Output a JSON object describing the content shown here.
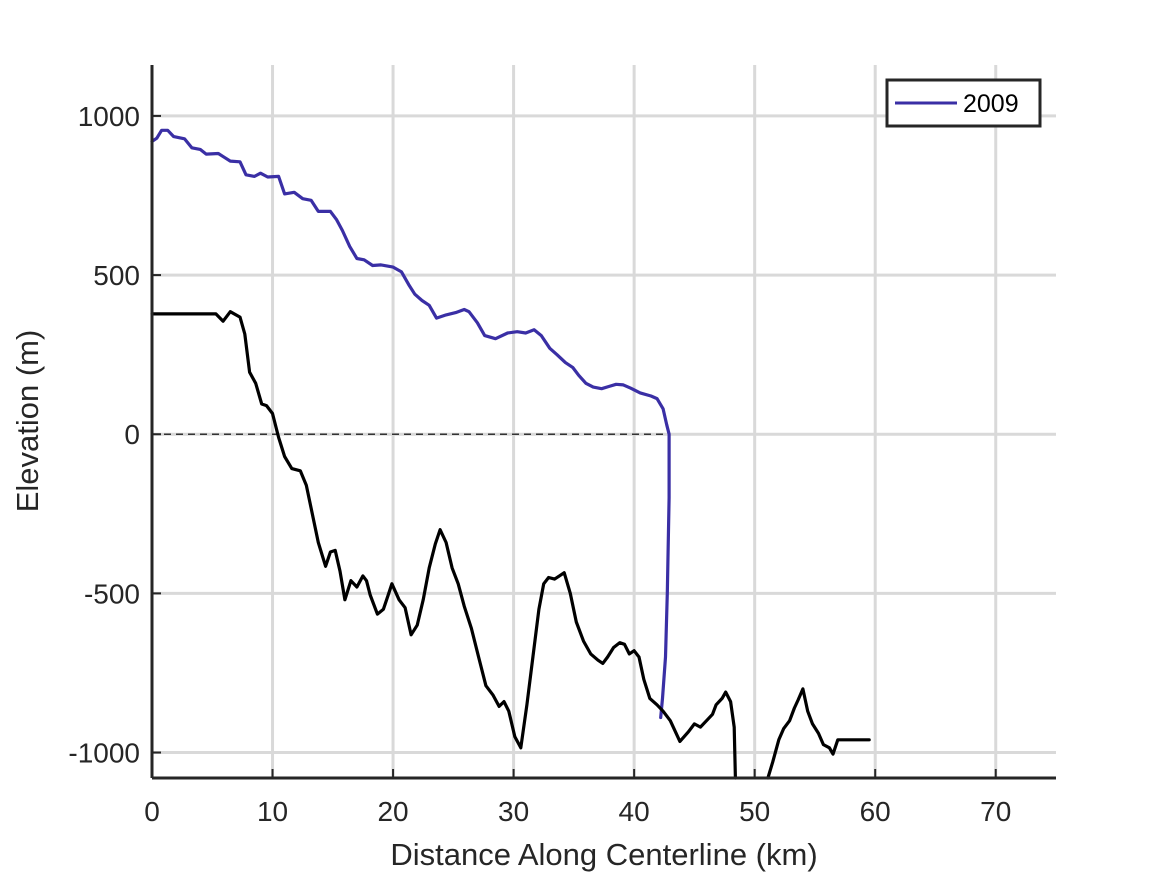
{
  "chart_data": {
    "type": "line",
    "title": "",
    "xlabel": "Distance Along Centerline (km)",
    "ylabel": "Elevation (m)",
    "xlim": [
      0,
      75
    ],
    "ylim": [
      -1080,
      1160
    ],
    "xticks": [
      0,
      10,
      20,
      30,
      40,
      50,
      60,
      70
    ],
    "yticks": [
      -1000,
      -500,
      0,
      500,
      1000
    ],
    "xtick_labels": [
      "0",
      "10",
      "20",
      "30",
      "40",
      "50",
      "60",
      "70"
    ],
    "ytick_labels": [
      "-1000",
      "-500",
      "0",
      "500",
      "1000"
    ],
    "grid": true,
    "legend": {
      "position": "top-right",
      "entries": [
        "2009"
      ]
    },
    "reference_line": {
      "y": 0,
      "x_range": [
        0,
        43
      ],
      "style": "dashed"
    },
    "series": [
      {
        "name": "2009",
        "color": "#3a2fa5",
        "points": [
          [
            0,
            920
          ],
          [
            0.4,
            930
          ],
          [
            0.8,
            955
          ],
          [
            1.3,
            955
          ],
          [
            1.8,
            935
          ],
          [
            2.7,
            928
          ],
          [
            3.3,
            900
          ],
          [
            4.0,
            895
          ],
          [
            4.5,
            880
          ],
          [
            5.5,
            882
          ],
          [
            6.0,
            870
          ],
          [
            6.5,
            858
          ],
          [
            7.3,
            856
          ],
          [
            7.8,
            815
          ],
          [
            8.5,
            810
          ],
          [
            9.0,
            820
          ],
          [
            9.6,
            808
          ],
          [
            10.5,
            810
          ],
          [
            11.0,
            755
          ],
          [
            11.8,
            760
          ],
          [
            12.5,
            740
          ],
          [
            13.2,
            735
          ],
          [
            13.8,
            700
          ],
          [
            14.8,
            700
          ],
          [
            15.3,
            675
          ],
          [
            15.8,
            640
          ],
          [
            16.4,
            590
          ],
          [
            17.0,
            552
          ],
          [
            17.6,
            548
          ],
          [
            18.3,
            530
          ],
          [
            19.0,
            532
          ],
          [
            20.0,
            525
          ],
          [
            20.7,
            510
          ],
          [
            21.3,
            470
          ],
          [
            21.8,
            440
          ],
          [
            22.4,
            420
          ],
          [
            23.0,
            405
          ],
          [
            23.6,
            365
          ],
          [
            24.4,
            375
          ],
          [
            25.2,
            382
          ],
          [
            25.9,
            392
          ],
          [
            26.3,
            385
          ],
          [
            27.0,
            350
          ],
          [
            27.6,
            310
          ],
          [
            28.5,
            300
          ],
          [
            29.5,
            318
          ],
          [
            30.3,
            322
          ],
          [
            31.0,
            318
          ],
          [
            31.7,
            328
          ],
          [
            32.3,
            310
          ],
          [
            33.0,
            270
          ],
          [
            33.6,
            250
          ],
          [
            34.3,
            225
          ],
          [
            34.9,
            210
          ],
          [
            35.4,
            185
          ],
          [
            36.0,
            160
          ],
          [
            36.6,
            148
          ],
          [
            37.3,
            143
          ],
          [
            37.9,
            150
          ],
          [
            38.5,
            157
          ],
          [
            39.1,
            155
          ],
          [
            39.7,
            145
          ],
          [
            40.5,
            130
          ],
          [
            41.4,
            120
          ],
          [
            41.9,
            112
          ],
          [
            42.4,
            80
          ],
          [
            42.7,
            30
          ],
          [
            42.9,
            0
          ],
          [
            42.9,
            -200
          ],
          [
            42.75,
            -500
          ],
          [
            42.6,
            -700
          ],
          [
            42.35,
            -830
          ],
          [
            42.2,
            -890
          ]
        ]
      },
      {
        "name": "",
        "color": "#000000",
        "segments": [
          [
            [
              0,
              378
            ],
            [
              5.3,
              378
            ],
            [
              5.9,
              355
            ],
            [
              6.5,
              385
            ],
            [
              7.3,
              368
            ],
            [
              7.7,
              315
            ],
            [
              8.1,
              195
            ],
            [
              8.6,
              160
            ],
            [
              9.1,
              95
            ],
            [
              9.5,
              90
            ],
            [
              10.0,
              65
            ],
            [
              10.5,
              -10
            ],
            [
              11.0,
              -70
            ],
            [
              11.6,
              -108
            ],
            [
              12.3,
              -115
            ],
            [
              12.8,
              -160
            ],
            [
              13.3,
              -250
            ],
            [
              13.8,
              -340
            ],
            [
              14.4,
              -415
            ],
            [
              14.8,
              -370
            ],
            [
              15.2,
              -365
            ],
            [
              15.6,
              -430
            ],
            [
              16.0,
              -520
            ],
            [
              16.5,
              -460
            ],
            [
              17.0,
              -480
            ],
            [
              17.5,
              -445
            ],
            [
              17.8,
              -460
            ],
            [
              18.1,
              -505
            ],
            [
              18.7,
              -565
            ],
            [
              19.2,
              -550
            ],
            [
              19.6,
              -505
            ],
            [
              19.9,
              -470
            ],
            [
              20.5,
              -520
            ],
            [
              21.0,
              -545
            ],
            [
              21.5,
              -630
            ],
            [
              22.0,
              -600
            ],
            [
              22.5,
              -520
            ],
            [
              23.0,
              -420
            ],
            [
              23.5,
              -345
            ],
            [
              23.9,
              -300
            ],
            [
              24.4,
              -340
            ],
            [
              24.9,
              -420
            ],
            [
              25.4,
              -470
            ],
            [
              25.9,
              -540
            ],
            [
              26.5,
              -610
            ],
            [
              27.1,
              -700
            ],
            [
              27.7,
              -790
            ],
            [
              28.3,
              -820
            ],
            [
              28.8,
              -855
            ],
            [
              29.2,
              -840
            ],
            [
              29.6,
              -870
            ],
            [
              30.1,
              -950
            ],
            [
              30.6,
              -985
            ],
            [
              31.1,
              -850
            ],
            [
              31.6,
              -700
            ],
            [
              32.1,
              -550
            ],
            [
              32.5,
              -470
            ],
            [
              32.9,
              -450
            ],
            [
              33.4,
              -455
            ],
            [
              33.8,
              -445
            ],
            [
              34.2,
              -435
            ],
            [
              34.7,
              -500
            ],
            [
              35.2,
              -590
            ],
            [
              35.8,
              -650
            ],
            [
              36.4,
              -690
            ],
            [
              37.0,
              -710
            ],
            [
              37.4,
              -720
            ],
            [
              37.8,
              -700
            ],
            [
              38.3,
              -670
            ],
            [
              38.8,
              -655
            ],
            [
              39.2,
              -660
            ],
            [
              39.6,
              -690
            ],
            [
              40.0,
              -680
            ],
            [
              40.4,
              -700
            ],
            [
              40.8,
              -770
            ],
            [
              41.3,
              -830
            ],
            [
              41.9,
              -850
            ],
            [
              42.4,
              -870
            ],
            [
              43.0,
              -900
            ],
            [
              43.8,
              -965
            ],
            [
              44.5,
              -935
            ],
            [
              45.0,
              -910
            ],
            [
              45.5,
              -920
            ],
            [
              46.0,
              -900
            ],
            [
              46.5,
              -880
            ],
            [
              46.8,
              -850
            ],
            [
              47.3,
              -830
            ],
            [
              47.6,
              -810
            ],
            [
              48.0,
              -840
            ],
            [
              48.3,
              -920
            ],
            [
              48.4,
              -1080
            ]
          ],
          [
            [
              51.1,
              -1080
            ],
            [
              51.5,
              -1030
            ],
            [
              52.0,
              -960
            ],
            [
              52.4,
              -925
            ],
            [
              52.9,
              -900
            ],
            [
              53.3,
              -860
            ],
            [
              53.6,
              -835
            ],
            [
              54.0,
              -800
            ],
            [
              54.4,
              -870
            ],
            [
              54.8,
              -910
            ],
            [
              55.3,
              -940
            ],
            [
              55.7,
              -975
            ],
            [
              56.2,
              -985
            ],
            [
              56.5,
              -1005
            ],
            [
              56.9,
              -960
            ],
            [
              59.5,
              -960
            ]
          ]
        ]
      }
    ]
  }
}
